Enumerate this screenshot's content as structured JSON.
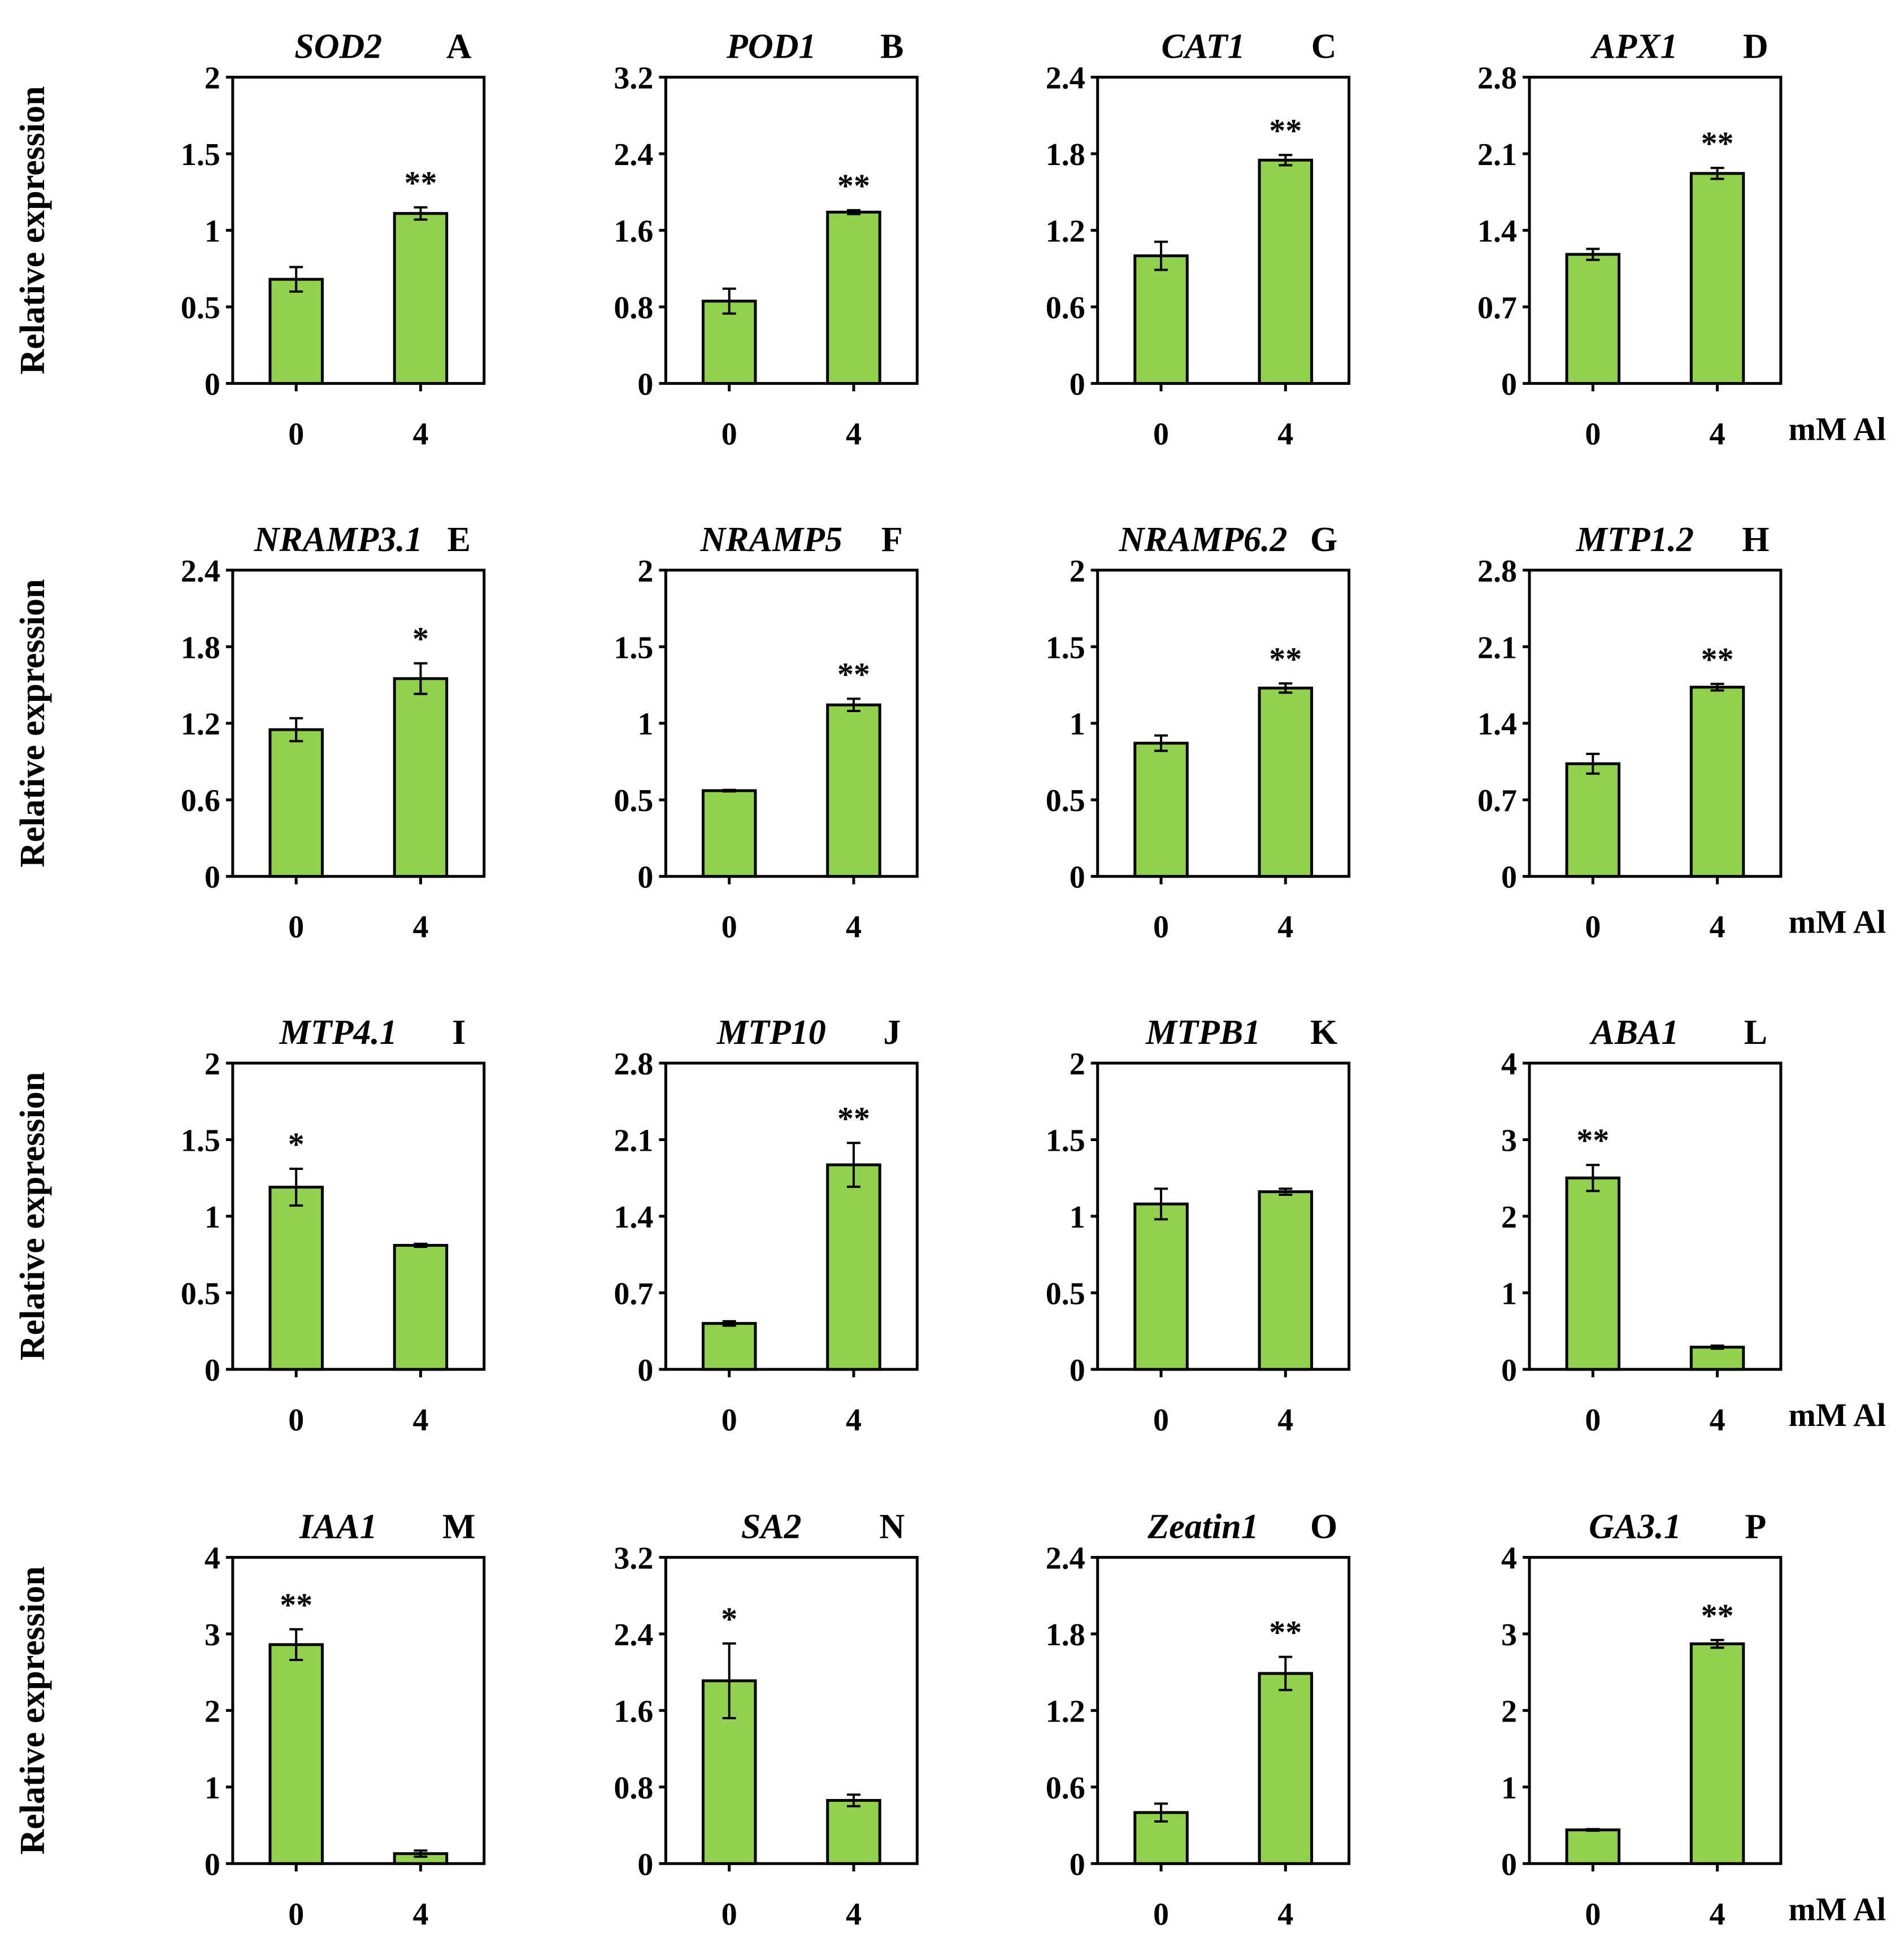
{
  "figure": {
    "y_axis_label": "Relative expression",
    "x_unit_label": "mM Al",
    "accent_color": "#92D050",
    "categories": [
      "0",
      "4"
    ]
  },
  "chart_data": [
    {
      "type": "bar",
      "panel": "A",
      "title": "SOD2",
      "categories": [
        "0",
        "4"
      ],
      "values": [
        0.68,
        1.11
      ],
      "errors": [
        0.08,
        0.04
      ],
      "significance": [
        "",
        "**"
      ],
      "ylim": [
        0,
        2
      ],
      "yticks": [
        "0",
        "0.5",
        "1",
        "1.5",
        "2"
      ],
      "yticks_num": [
        0,
        0.5,
        1,
        1.5,
        2
      ]
    },
    {
      "type": "bar",
      "panel": "B",
      "title": "POD1",
      "categories": [
        "0",
        "4"
      ],
      "values": [
        0.86,
        1.79
      ],
      "errors": [
        0.13,
        0.02
      ],
      "significance": [
        "",
        "**"
      ],
      "ylim": [
        0,
        3.2
      ],
      "yticks": [
        "0",
        "0.8",
        "1.6",
        "2.4",
        "3.2"
      ],
      "yticks_num": [
        0,
        0.8,
        1.6,
        2.4,
        3.2
      ]
    },
    {
      "type": "bar",
      "panel": "C",
      "title": "CAT1",
      "categories": [
        "0",
        "4"
      ],
      "values": [
        1.0,
        1.75
      ],
      "errors": [
        0.11,
        0.04
      ],
      "significance": [
        "",
        "**"
      ],
      "ylim": [
        0,
        2.4
      ],
      "yticks": [
        "0",
        "0.6",
        "1.2",
        "1.8",
        "2.4"
      ],
      "yticks_num": [
        0,
        0.6,
        1.2,
        1.8,
        2.4
      ]
    },
    {
      "type": "bar",
      "panel": "D",
      "title": "APX1",
      "categories": [
        "0",
        "4"
      ],
      "values": [
        1.18,
        1.92
      ],
      "errors": [
        0.05,
        0.05
      ],
      "significance": [
        "",
        "**"
      ],
      "ylim": [
        0,
        2.8
      ],
      "yticks": [
        "0",
        "0.7",
        "1.4",
        "2.1",
        "2.8"
      ],
      "yticks_num": [
        0,
        0.7,
        1.4,
        2.1,
        2.8
      ]
    },
    {
      "type": "bar",
      "panel": "E",
      "title": "NRAMP3.1",
      "categories": [
        "0",
        "4"
      ],
      "values": [
        1.15,
        1.55
      ],
      "errors": [
        0.09,
        0.12
      ],
      "significance": [
        "",
        "*"
      ],
      "ylim": [
        0,
        2.4
      ],
      "yticks": [
        "0",
        "0.6",
        "1.2",
        "1.8",
        "2.4"
      ],
      "yticks_num": [
        0,
        0.6,
        1.2,
        1.8,
        2.4
      ]
    },
    {
      "type": "bar",
      "panel": "F",
      "title": "NRAMP5",
      "categories": [
        "0",
        "4"
      ],
      "values": [
        0.56,
        1.12
      ],
      "errors": [
        0.005,
        0.04
      ],
      "significance": [
        "",
        "**"
      ],
      "ylim": [
        0,
        2
      ],
      "yticks": [
        "0",
        "0.5",
        "1",
        "1.5",
        "2"
      ],
      "yticks_num": [
        0,
        0.5,
        1,
        1.5,
        2
      ]
    },
    {
      "type": "bar",
      "panel": "G",
      "title": "NRAMP6.2",
      "categories": [
        "0",
        "4"
      ],
      "values": [
        0.87,
        1.23
      ],
      "errors": [
        0.05,
        0.03
      ],
      "significance": [
        "",
        "**"
      ],
      "ylim": [
        0,
        2
      ],
      "yticks": [
        "0",
        "0.5",
        "1",
        "1.5",
        "2"
      ],
      "yticks_num": [
        0,
        0.5,
        1,
        1.5,
        2
      ]
    },
    {
      "type": "bar",
      "panel": "H",
      "title": "MTP1.2",
      "categories": [
        "0",
        "4"
      ],
      "values": [
        1.03,
        1.73
      ],
      "errors": [
        0.09,
        0.03
      ],
      "significance": [
        "",
        "**"
      ],
      "ylim": [
        0,
        2.8
      ],
      "yticks": [
        "0",
        "0.7",
        "1.4",
        "2.1",
        "2.8"
      ],
      "yticks_num": [
        0,
        0.7,
        1.4,
        2.1,
        2.8
      ]
    },
    {
      "type": "bar",
      "panel": "I",
      "title": "MTP4.1",
      "categories": [
        "0",
        "4"
      ],
      "values": [
        1.19,
        0.81
      ],
      "errors": [
        0.12,
        0.01
      ],
      "significance": [
        "*",
        ""
      ],
      "ylim": [
        0,
        2
      ],
      "yticks": [
        "0",
        "0.5",
        "1",
        "1.5",
        "2"
      ],
      "yticks_num": [
        0,
        0.5,
        1,
        1.5,
        2
      ]
    },
    {
      "type": "bar",
      "panel": "J",
      "title": "MTP10",
      "categories": [
        "0",
        "4"
      ],
      "values": [
        0.42,
        1.87
      ],
      "errors": [
        0.02,
        0.2
      ],
      "significance": [
        "",
        "**"
      ],
      "ylim": [
        0,
        2.8
      ],
      "yticks": [
        "0",
        "0.7",
        "1.4",
        "2.1",
        "2.8"
      ],
      "yticks_num": [
        0,
        0.7,
        1.4,
        2.1,
        2.8
      ]
    },
    {
      "type": "bar",
      "panel": "K",
      "title": "MTPB1",
      "categories": [
        "0",
        "4"
      ],
      "values": [
        1.08,
        1.16
      ],
      "errors": [
        0.1,
        0.02
      ],
      "significance": [
        "",
        ""
      ],
      "ylim": [
        0,
        2
      ],
      "yticks": [
        "0",
        "0.5",
        "1",
        "1.5",
        "2"
      ],
      "yticks_num": [
        0,
        0.5,
        1,
        1.5,
        2
      ]
    },
    {
      "type": "bar",
      "panel": "L",
      "title": "ABA1",
      "categories": [
        "0",
        "4"
      ],
      "values": [
        2.5,
        0.29
      ],
      "errors": [
        0.17,
        0.02
      ],
      "significance": [
        "**",
        ""
      ],
      "ylim": [
        0,
        4
      ],
      "yticks": [
        "0",
        "1",
        "2",
        "3",
        "4"
      ],
      "yticks_num": [
        0,
        1,
        2,
        3,
        4
      ]
    },
    {
      "type": "bar",
      "panel": "M",
      "title": "IAA1",
      "categories": [
        "0",
        "4"
      ],
      "values": [
        2.86,
        0.13
      ],
      "errors": [
        0.2,
        0.04
      ],
      "significance": [
        "**",
        ""
      ],
      "ylim": [
        0,
        4
      ],
      "yticks": [
        "0",
        "1",
        "2",
        "3",
        "4"
      ],
      "yticks_num": [
        0,
        1,
        2,
        3,
        4
      ]
    },
    {
      "type": "bar",
      "panel": "N",
      "title": "SA2",
      "categories": [
        "0",
        "4"
      ],
      "values": [
        1.91,
        0.66
      ],
      "errors": [
        0.39,
        0.06
      ],
      "significance": [
        "*",
        ""
      ],
      "ylim": [
        0,
        3.2
      ],
      "yticks": [
        "0",
        "0.8",
        "1.6",
        "2.4",
        "3.2"
      ],
      "yticks_num": [
        0,
        0.8,
        1.6,
        2.4,
        3.2
      ]
    },
    {
      "type": "bar",
      "panel": "O",
      "title": "Zeatin1",
      "categories": [
        "0",
        "4"
      ],
      "values": [
        0.4,
        1.49
      ],
      "errors": [
        0.07,
        0.13
      ],
      "significance": [
        "",
        "**"
      ],
      "ylim": [
        0,
        2.4
      ],
      "yticks": [
        "0",
        "0.6",
        "1.2",
        "1.8",
        "2.4"
      ],
      "yticks_num": [
        0,
        0.6,
        1.2,
        1.8,
        2.4
      ]
    },
    {
      "type": "bar",
      "panel": "P",
      "title": "GA3.1",
      "categories": [
        "0",
        "4"
      ],
      "values": [
        0.44,
        2.87
      ],
      "errors": [
        0.01,
        0.05
      ],
      "significance": [
        "",
        "**"
      ],
      "ylim": [
        0,
        4
      ],
      "yticks": [
        "0",
        "1",
        "2",
        "3",
        "4"
      ],
      "yticks_num": [
        0,
        1,
        2,
        3,
        4
      ]
    }
  ]
}
